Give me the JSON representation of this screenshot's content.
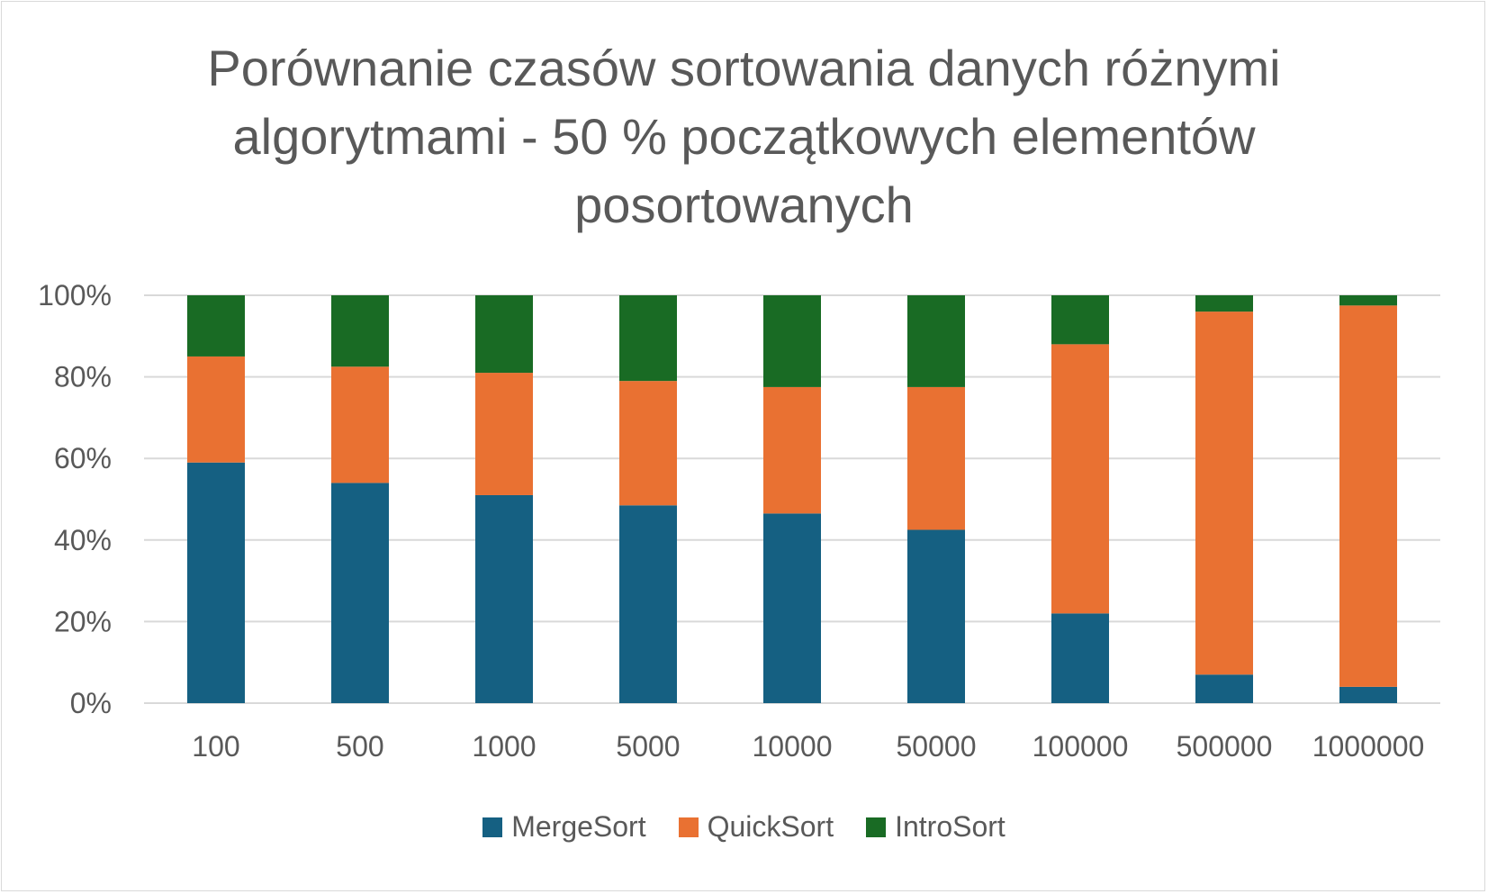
{
  "chart_data": {
    "type": "bar",
    "stacked": "percent",
    "title": "Porównanie czasów sortowania danych różnymi algorytmami - 50 % początkowych elementów posortowanych",
    "categories": [
      "100",
      "500",
      "1000",
      "5000",
      "10000",
      "50000",
      "100000",
      "500000",
      "1000000"
    ],
    "series": [
      {
        "name": "MergeSort",
        "color": "#156082",
        "values": [
          59,
          54,
          51,
          48.5,
          46.5,
          42.5,
          22,
          7,
          4
        ]
      },
      {
        "name": "QuickSort",
        "color": "#E97132",
        "values": [
          26,
          28.5,
          30,
          30.5,
          31,
          35,
          66,
          89,
          93.5
        ]
      },
      {
        "name": "IntroSort",
        "color": "#196B24",
        "values": [
          15,
          17.5,
          19,
          21,
          22.5,
          22.5,
          12,
          4,
          2.5
        ]
      }
    ],
    "y_ticks": [
      "0%",
      "20%",
      "40%",
      "60%",
      "80%",
      "100%"
    ],
    "ylim": [
      0,
      100
    ],
    "grid": true,
    "legend_position": "bottom"
  }
}
